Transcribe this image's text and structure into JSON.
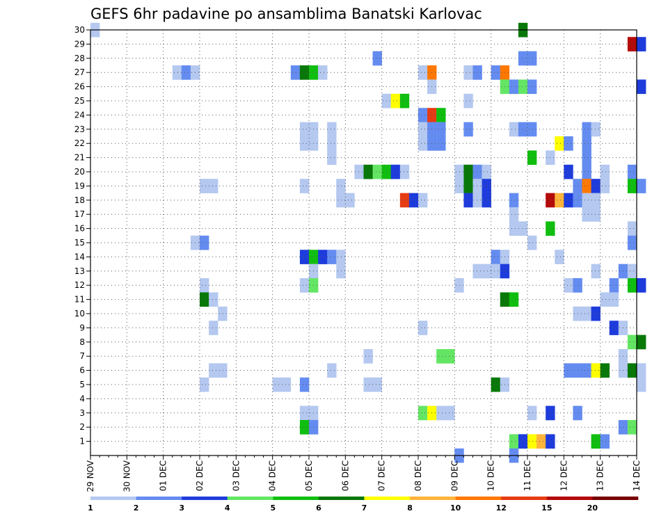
{
  "chart_data": {
    "type": "heatmap",
    "title": "GEFS 6hr padavine po ansamblima Banatski Karlovac",
    "xlabel": "",
    "ylabel": "",
    "x_ticks": [
      "29 NOV",
      "30 NOV",
      "01 DEC",
      "02 DEC",
      "03 DEC",
      "04 DEC",
      "05 DEC",
      "06 DEC",
      "07 DEC",
      "08 DEC",
      "09 DEC",
      "10 DEC",
      "11 DEC",
      "12 DEC",
      "13 DEC",
      "14 DEC"
    ],
    "y_ticks": [
      "1",
      "2",
      "3",
      "4",
      "5",
      "6",
      "7",
      "8",
      "9",
      "10",
      "11",
      "12",
      "13",
      "14",
      "15",
      "16",
      "17",
      "18",
      "19",
      "20",
      "21",
      "22",
      "23",
      "24",
      "25",
      "26",
      "27",
      "28",
      "29",
      "30"
    ],
    "x_unit": "6-hour step since 29 NOV",
    "ylim": [
      0,
      30
    ],
    "grid": true,
    "colorbar": {
      "ticks": [
        "1",
        "2",
        "3",
        "4",
        "5",
        "6",
        "7",
        "8",
        "10",
        "12",
        "15",
        "20"
      ],
      "colors": [
        "#b4c8f0",
        "#648cf0",
        "#1e3cdc",
        "#64e664",
        "#10be10",
        "#087808",
        "#ffff00",
        "#ffb43c",
        "#ff7800",
        "#e63c14",
        "#b40a0a",
        "#780000"
      ]
    },
    "cells": [
      [
        0,
        30,
        1,
        1
      ],
      [
        9,
        27,
        1,
        1
      ],
      [
        10,
        27,
        2,
        1
      ],
      [
        11,
        27,
        1,
        1
      ],
      [
        22,
        27,
        2,
        1
      ],
      [
        23,
        27,
        6,
        1
      ],
      [
        24,
        27,
        5,
        1
      ],
      [
        25,
        27,
        1,
        1
      ],
      [
        36,
        27,
        1,
        1
      ],
      [
        37,
        27,
        9,
        1
      ],
      [
        41,
        27,
        1,
        1
      ],
      [
        42,
        27,
        2,
        1
      ],
      [
        44,
        27,
        2,
        1
      ],
      [
        45,
        27,
        9,
        1
      ],
      [
        31,
        28,
        2,
        1
      ],
      [
        47,
        28,
        2,
        1
      ],
      [
        48,
        28,
        2,
        1
      ],
      [
        47,
        30,
        6,
        1
      ],
      [
        59,
        29,
        11,
        1
      ],
      [
        60,
        29,
        3,
        1
      ],
      [
        37,
        26,
        1,
        1
      ],
      [
        45,
        26,
        4,
        1
      ],
      [
        46,
        26,
        2,
        1
      ],
      [
        47,
        26,
        4,
        1
      ],
      [
        48,
        26,
        2,
        1
      ],
      [
        60,
        26,
        3,
        1
      ],
      [
        32,
        25,
        1,
        1
      ],
      [
        33,
        25,
        7,
        1
      ],
      [
        34,
        25,
        5,
        1
      ],
      [
        41,
        25,
        1,
        1
      ],
      [
        36,
        24,
        2,
        1
      ],
      [
        37,
        24,
        10,
        1
      ],
      [
        38,
        24,
        5,
        1
      ],
      [
        23,
        23,
        1,
        1
      ],
      [
        24,
        23,
        1,
        1
      ],
      [
        26,
        23,
        1,
        1
      ],
      [
        36,
        23,
        1,
        1
      ],
      [
        37,
        23,
        2,
        1
      ],
      [
        38,
        23,
        2,
        1
      ],
      [
        41,
        23,
        2,
        1
      ],
      [
        46,
        23,
        1,
        1
      ],
      [
        47,
        23,
        2,
        1
      ],
      [
        48,
        23,
        2,
        1
      ],
      [
        54,
        23,
        2,
        1
      ],
      [
        55,
        23,
        1,
        1
      ],
      [
        23,
        22,
        1,
        1
      ],
      [
        24,
        22,
        1,
        1
      ],
      [
        26,
        22,
        1,
        1
      ],
      [
        36,
        22,
        1,
        1
      ],
      [
        37,
        22,
        2,
        1
      ],
      [
        38,
        22,
        2,
        1
      ],
      [
        51,
        22,
        7,
        1
      ],
      [
        52,
        22,
        2,
        1
      ],
      [
        54,
        22,
        2,
        1
      ],
      [
        26,
        21,
        1,
        1
      ],
      [
        54,
        21,
        2,
        1
      ],
      [
        48,
        21,
        5,
        1
      ],
      [
        50,
        21,
        1,
        1
      ],
      [
        29,
        20,
        1,
        1
      ],
      [
        30,
        20,
        6,
        1
      ],
      [
        31,
        20,
        4,
        1
      ],
      [
        32,
        20,
        5,
        1
      ],
      [
        33,
        20,
        3,
        1
      ],
      [
        34,
        20,
        1,
        1
      ],
      [
        40,
        20,
        1,
        1
      ],
      [
        41,
        20,
        6,
        1
      ],
      [
        42,
        20,
        2,
        1
      ],
      [
        43,
        20,
        1,
        1
      ],
      [
        52,
        20,
        3,
        1
      ],
      [
        54,
        20,
        2,
        1
      ],
      [
        56,
        20,
        1,
        1
      ],
      [
        59,
        20,
        2,
        1
      ],
      [
        12,
        19,
        1,
        1
      ],
      [
        13,
        19,
        1,
        1
      ],
      [
        23,
        19,
        1,
        1
      ],
      [
        27,
        19,
        1,
        1
      ],
      [
        40,
        19,
        1,
        1
      ],
      [
        41,
        19,
        6,
        1
      ],
      [
        42,
        19,
        1,
        1
      ],
      [
        43,
        19,
        3,
        1
      ],
      [
        53,
        19,
        2,
        1
      ],
      [
        54,
        19,
        9,
        1
      ],
      [
        55,
        19,
        3,
        1
      ],
      [
        56,
        19,
        1,
        1
      ],
      [
        59,
        19,
        5,
        1
      ],
      [
        60,
        19,
        2,
        1
      ],
      [
        27,
        18,
        1,
        1
      ],
      [
        28,
        18,
        1,
        1
      ],
      [
        34,
        18,
        10,
        1
      ],
      [
        35,
        18,
        3,
        1
      ],
      [
        36,
        18,
        1,
        1
      ],
      [
        41,
        18,
        3,
        1
      ],
      [
        42,
        18,
        1,
        1
      ],
      [
        43,
        18,
        3,
        1
      ],
      [
        46,
        18,
        2,
        1
      ],
      [
        50,
        18,
        11,
        1
      ],
      [
        51,
        18,
        8,
        1
      ],
      [
        52,
        18,
        3,
        1
      ],
      [
        53,
        18,
        2,
        1
      ],
      [
        54,
        18,
        1,
        1
      ],
      [
        55,
        18,
        1,
        1
      ],
      [
        46,
        17,
        1,
        1
      ],
      [
        54,
        17,
        1,
        1
      ],
      [
        55,
        17,
        1,
        1
      ],
      [
        46,
        16,
        1,
        1
      ],
      [
        47,
        16,
        1,
        1
      ],
      [
        50,
        16,
        5,
        1
      ],
      [
        59,
        16,
        1,
        1
      ],
      [
        11,
        15,
        1,
        1
      ],
      [
        12,
        15,
        2,
        1
      ],
      [
        48,
        15,
        1,
        1
      ],
      [
        59,
        15,
        2,
        1
      ],
      [
        23,
        14,
        3,
        1
      ],
      [
        24,
        14,
        5,
        1
      ],
      [
        25,
        14,
        3,
        1
      ],
      [
        26,
        14,
        2,
        1
      ],
      [
        27,
        14,
        1,
        1
      ],
      [
        44,
        14,
        2,
        1
      ],
      [
        45,
        14,
        1,
        1
      ],
      [
        51,
        14,
        1,
        1
      ],
      [
        24,
        13,
        1,
        1
      ],
      [
        27,
        13,
        1,
        1
      ],
      [
        42,
        13,
        1,
        1
      ],
      [
        43,
        13,
        1,
        1
      ],
      [
        44,
        13,
        1,
        1
      ],
      [
        45,
        13,
        3,
        1
      ],
      [
        55,
        13,
        1,
        1
      ],
      [
        58,
        13,
        2,
        1
      ],
      [
        59,
        13,
        1,
        1
      ],
      [
        12,
        12,
        1,
        1
      ],
      [
        23,
        12,
        1,
        1
      ],
      [
        24,
        12,
        4,
        1
      ],
      [
        40,
        12,
        1,
        1
      ],
      [
        52,
        12,
        1,
        1
      ],
      [
        53,
        12,
        2,
        1
      ],
      [
        57,
        12,
        2,
        1
      ],
      [
        59,
        12,
        5,
        1
      ],
      [
        60,
        12,
        3,
        1
      ],
      [
        12,
        11,
        6,
        1
      ],
      [
        13,
        11,
        1,
        1
      ],
      [
        45,
        11,
        6,
        1
      ],
      [
        46,
        11,
        5,
        1
      ],
      [
        56,
        11,
        1,
        1
      ],
      [
        57,
        11,
        1,
        1
      ],
      [
        14,
        10,
        1,
        1
      ],
      [
        53,
        10,
        1,
        1
      ],
      [
        54,
        10,
        1,
        1
      ],
      [
        55,
        10,
        3,
        1
      ],
      [
        13,
        9,
        1,
        1
      ],
      [
        36,
        9,
        1,
        1
      ],
      [
        57,
        9,
        3,
        1
      ],
      [
        58,
        9,
        1,
        1
      ],
      [
        59,
        8,
        4,
        1
      ],
      [
        60,
        8,
        6,
        1
      ],
      [
        30,
        7,
        1,
        1
      ],
      [
        38,
        7,
        4,
        1
      ],
      [
        39,
        7,
        4,
        1
      ],
      [
        58,
        7,
        1,
        1
      ],
      [
        13,
        6,
        1,
        1
      ],
      [
        14,
        6,
        1,
        1
      ],
      [
        26,
        6,
        1,
        1
      ],
      [
        52,
        6,
        2,
        1
      ],
      [
        53,
        6,
        2,
        1
      ],
      [
        54,
        6,
        2,
        1
      ],
      [
        55,
        6,
        7,
        1
      ],
      [
        56,
        6,
        6,
        1
      ],
      [
        58,
        6,
        1,
        1
      ],
      [
        59,
        6,
        6,
        1
      ],
      [
        60,
        6,
        1,
        1
      ],
      [
        12,
        5,
        1,
        1
      ],
      [
        20,
        5,
        1,
        1
      ],
      [
        21,
        5,
        1,
        1
      ],
      [
        23,
        5,
        2,
        1
      ],
      [
        30,
        5,
        1,
        1
      ],
      [
        31,
        5,
        1,
        1
      ],
      [
        44,
        5,
        6,
        1
      ],
      [
        45,
        5,
        1,
        1
      ],
      [
        60,
        5,
        1,
        1
      ],
      [
        23,
        3,
        1,
        1
      ],
      [
        24,
        3,
        1,
        1
      ],
      [
        36,
        3,
        4,
        1
      ],
      [
        37,
        3,
        7,
        1
      ],
      [
        38,
        3,
        1,
        1
      ],
      [
        39,
        3,
        1,
        1
      ],
      [
        48,
        3,
        1,
        1
      ],
      [
        50,
        3,
        3,
        1
      ],
      [
        53,
        3,
        2,
        1
      ],
      [
        23,
        2,
        5,
        1
      ],
      [
        24,
        2,
        2,
        1
      ],
      [
        58,
        2,
        2,
        1
      ],
      [
        59,
        2,
        4,
        1
      ],
      [
        46,
        1,
        4,
        1
      ],
      [
        47,
        1,
        3,
        1
      ],
      [
        48,
        1,
        7,
        1
      ],
      [
        49,
        1,
        8,
        1
      ],
      [
        50,
        1,
        3,
        1
      ],
      [
        55,
        1,
        5,
        1
      ],
      [
        56,
        1,
        2,
        1
      ],
      [
        40,
        0,
        2,
        1
      ],
      [
        46,
        0,
        2,
        1
      ]
    ]
  }
}
